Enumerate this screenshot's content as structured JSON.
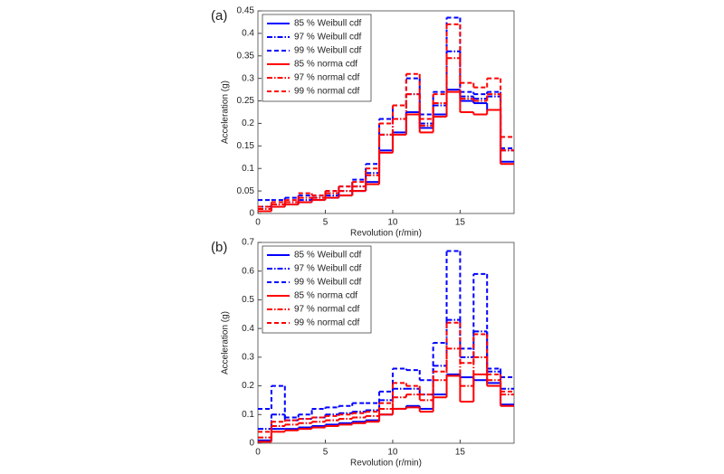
{
  "chart_data": [
    {
      "type": "step",
      "label": "(a)",
      "xlabel": "Revolution (r/min)",
      "ylabel": "Acceleration (g)",
      "x": [
        0,
        1,
        2,
        3,
        4,
        5,
        6,
        7,
        8,
        9,
        10,
        11,
        12,
        13,
        14,
        15,
        16,
        17,
        18
      ],
      "xlim": [
        0,
        19
      ],
      "xticks": [
        0,
        5,
        10,
        15
      ],
      "ylim": [
        0,
        0.45
      ],
      "yticks": [
        0,
        0.05,
        0.1,
        0.15,
        0.2,
        0.25,
        0.3,
        0.35,
        0.4,
        0.45
      ],
      "legend": "upper left",
      "series": [
        {
          "name": "85 % Weibull cdf",
          "color": "#0000ff",
          "dash": "solid",
          "values": [
            0.005,
            0.015,
            0.02,
            0.025,
            0.03,
            0.035,
            0.04,
            0.05,
            0.07,
            0.14,
            0.18,
            0.225,
            0.19,
            0.22,
            0.275,
            0.25,
            0.245,
            0.23,
            0.115
          ]
        },
        {
          "name": "97 % Weibull cdf",
          "color": "#0000ff",
          "dash": "dashdot",
          "values": [
            0.015,
            0.02,
            0.025,
            0.03,
            0.035,
            0.04,
            0.05,
            0.06,
            0.09,
            0.175,
            0.21,
            0.265,
            0.2,
            0.24,
            0.36,
            0.26,
            0.255,
            0.26,
            0.14
          ]
        },
        {
          "name": "99 % Weibull cdf",
          "color": "#0000ff",
          "dash": "dashed",
          "values": [
            0.03,
            0.03,
            0.035,
            0.04,
            0.04,
            0.05,
            0.06,
            0.075,
            0.11,
            0.21,
            0.24,
            0.3,
            0.22,
            0.27,
            0.435,
            0.27,
            0.265,
            0.27,
            0.145
          ]
        },
        {
          "name": "85 % norma cdf",
          "color": "#ff0000",
          "dash": "solid",
          "values": [
            0.005,
            0.015,
            0.02,
            0.025,
            0.03,
            0.035,
            0.04,
            0.05,
            0.065,
            0.135,
            0.175,
            0.22,
            0.18,
            0.215,
            0.27,
            0.225,
            0.22,
            0.23,
            0.11
          ]
        },
        {
          "name": "97 % normal cdf",
          "color": "#ff0000",
          "dash": "dashdot",
          "values": [
            0.01,
            0.02,
            0.025,
            0.035,
            0.035,
            0.045,
            0.05,
            0.06,
            0.085,
            0.175,
            0.21,
            0.265,
            0.195,
            0.245,
            0.345,
            0.255,
            0.25,
            0.265,
            0.14
          ]
        },
        {
          "name": "99 % normal cdf",
          "color": "#ff0000",
          "dash": "dashed",
          "values": [
            0.015,
            0.025,
            0.03,
            0.045,
            0.04,
            0.05,
            0.06,
            0.07,
            0.1,
            0.2,
            0.24,
            0.31,
            0.21,
            0.265,
            0.42,
            0.29,
            0.28,
            0.3,
            0.17
          ]
        }
      ]
    },
    {
      "type": "step",
      "label": "(b)",
      "xlabel": "Revolution (r/min)",
      "ylabel": "Acceleration (g)",
      "x": [
        0,
        1,
        2,
        3,
        4,
        5,
        6,
        7,
        8,
        9,
        10,
        11,
        12,
        13,
        14,
        15,
        16,
        17,
        18
      ],
      "xlim": [
        0,
        19
      ],
      "xticks": [
        0,
        5,
        10,
        15
      ],
      "ylim": [
        0,
        0.7
      ],
      "yticks": [
        0,
        0.1,
        0.2,
        0.3,
        0.4,
        0.5,
        0.6,
        0.7
      ],
      "legend": "upper left",
      "series": [
        {
          "name": "85 % Weibull cdf",
          "color": "#0000ff",
          "dash": "solid",
          "values": [
            0.01,
            0.05,
            0.05,
            0.055,
            0.06,
            0.065,
            0.07,
            0.075,
            0.08,
            0.1,
            0.12,
            0.13,
            0.12,
            0.17,
            0.24,
            0.23,
            0.22,
            0.21,
            0.135
          ]
        },
        {
          "name": "97 % Weibull cdf",
          "color": "#0000ff",
          "dash": "dashdot",
          "values": [
            0.05,
            0.1,
            0.08,
            0.085,
            0.09,
            0.1,
            0.105,
            0.11,
            0.115,
            0.15,
            0.19,
            0.19,
            0.17,
            0.27,
            0.43,
            0.3,
            0.39,
            0.25,
            0.19
          ]
        },
        {
          "name": "99 % Weibull cdf",
          "color": "#0000ff",
          "dash": "dashed",
          "values": [
            0.12,
            0.2,
            0.09,
            0.1,
            0.12,
            0.125,
            0.13,
            0.14,
            0.14,
            0.18,
            0.26,
            0.255,
            0.22,
            0.35,
            0.67,
            0.33,
            0.59,
            0.26,
            0.23
          ]
        },
        {
          "name": "85 % norma cdf",
          "color": "#ff0000",
          "dash": "solid",
          "values": [
            0.005,
            0.04,
            0.045,
            0.05,
            0.055,
            0.06,
            0.065,
            0.07,
            0.075,
            0.1,
            0.12,
            0.125,
            0.11,
            0.16,
            0.235,
            0.145,
            0.24,
            0.2,
            0.13
          ]
        },
        {
          "name": "97 % normal cdf",
          "color": "#ff0000",
          "dash": "dashdot",
          "values": [
            0.02,
            0.06,
            0.065,
            0.07,
            0.075,
            0.08,
            0.085,
            0.09,
            0.095,
            0.12,
            0.16,
            0.17,
            0.15,
            0.22,
            0.33,
            0.2,
            0.3,
            0.22,
            0.17
          ]
        },
        {
          "name": "99 % normal cdf",
          "color": "#ff0000",
          "dash": "dashed",
          "values": [
            0.04,
            0.075,
            0.08,
            0.085,
            0.09,
            0.095,
            0.1,
            0.105,
            0.11,
            0.14,
            0.21,
            0.2,
            0.17,
            0.25,
            0.42,
            0.28,
            0.38,
            0.24,
            0.18
          ]
        }
      ]
    }
  ]
}
